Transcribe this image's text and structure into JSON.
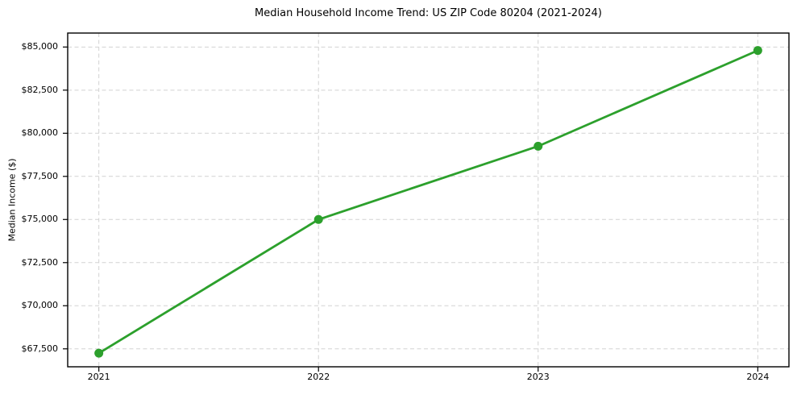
{
  "chart_data": {
    "type": "line",
    "title": "Median Household Income Trend: US ZIP Code 80204 (2021-2024)",
    "xlabel": "",
    "ylabel": "Median Income ($)",
    "categories": [
      "2021",
      "2022",
      "2023",
      "2024"
    ],
    "series": [
      {
        "name": "Median Household Income",
        "values": [
          67250,
          75000,
          79250,
          84800
        ]
      }
    ],
    "yticks": [
      {
        "value": 67500,
        "label": "$67,500"
      },
      {
        "value": 70000,
        "label": "$70,000"
      },
      {
        "value": 72500,
        "label": "$72,500"
      },
      {
        "value": 75000,
        "label": "$75,000"
      },
      {
        "value": 77500,
        "label": "$77,500"
      },
      {
        "value": 80000,
        "label": "$80,000"
      },
      {
        "value": 82500,
        "label": "$82,500"
      },
      {
        "value": 85000,
        "label": "$85,000"
      }
    ],
    "ylim": [
      66460,
      85810
    ],
    "grid": "dashed-both-axes",
    "legend_position": "none",
    "colors": {
      "line": "#2ca02c",
      "marker": "#2ca02c",
      "grid": "#d2d2d2",
      "axis_border": "#000000",
      "text": "#000000",
      "background": "#ffffff"
    }
  }
}
